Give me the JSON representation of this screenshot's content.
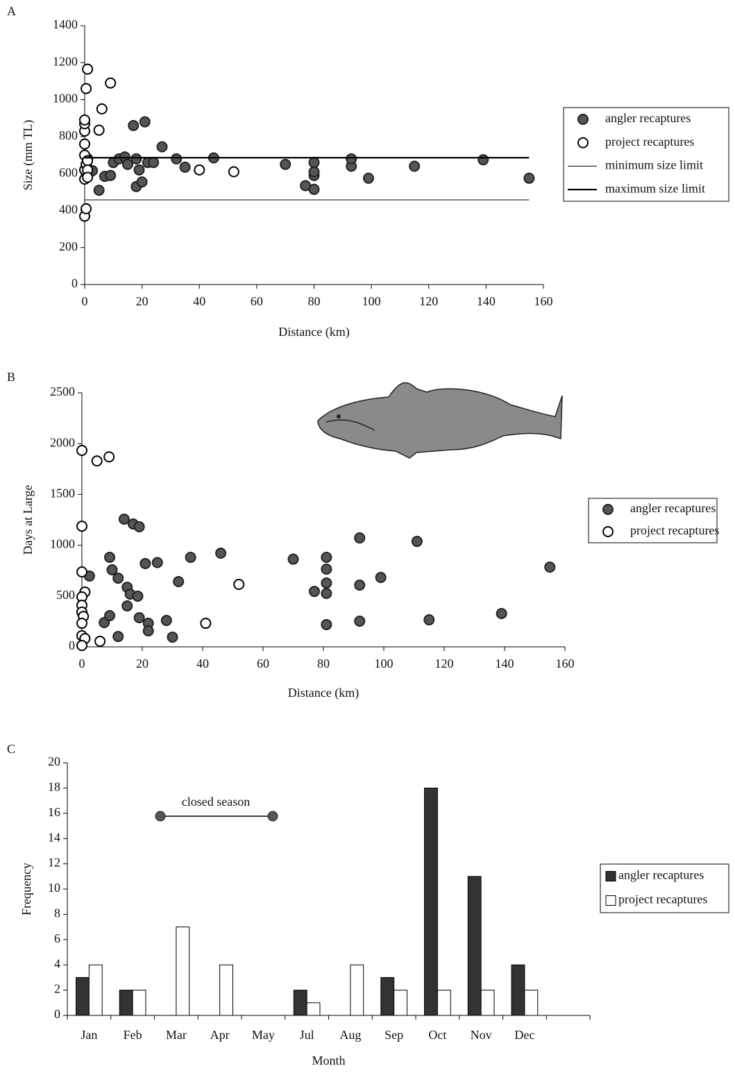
{
  "chart_data": [
    {
      "type": "scatter",
      "panel_label": "A",
      "x_label": "Distance (km)",
      "y_label": "Size (mm TL)",
      "xlim": [
        0,
        160
      ],
      "xticks": [
        0,
        20,
        40,
        60,
        80,
        100,
        120,
        140,
        160
      ],
      "ylim": [
        0,
        1400
      ],
      "yticks": [
        0,
        200,
        400,
        600,
        800,
        1000,
        1200,
        1400
      ],
      "series": [
        {
          "name": "angler recaptures",
          "marker": "filled",
          "color": "#555555",
          "x": [
            2,
            2.7,
            5,
            7,
            9,
            10,
            12,
            14,
            15,
            17,
            18,
            18,
            19,
            20,
            21,
            22,
            24,
            27,
            32,
            35,
            45,
            70,
            77,
            80,
            80,
            80,
            80,
            93,
            93,
            99,
            115,
            139,
            155
          ],
          "values": [
            610,
            616,
            510,
            585,
            590,
            660,
            680,
            690,
            650,
            860,
            680,
            530,
            620,
            555,
            880,
            660,
            660,
            745,
            680,
            635,
            685,
            650,
            535,
            515,
            590,
            610,
            660,
            640,
            680,
            575,
            640,
            675,
            575
          ]
        },
        {
          "name": "project recaptures",
          "marker": "open",
          "color": "#000000",
          "x": [
            0,
            0.5,
            0,
            0,
            0.5,
            1,
            0,
            0,
            0,
            0,
            0,
            1,
            1,
            0.5,
            1,
            9,
            6,
            5,
            40,
            52,
            1
          ],
          "values": [
            370,
            410,
            570,
            620,
            650,
            680,
            700,
            760,
            830,
            870,
            890,
            670,
            620,
            1060,
            1165,
            1090,
            950,
            835,
            620,
            610,
            580
          ]
        },
        {
          "name": "minimum size limit",
          "marker": "line",
          "width": 1,
          "color": "#000000",
          "x": [
            0,
            155
          ],
          "values": [
            458,
            458
          ]
        },
        {
          "name": "maximum size limit",
          "marker": "line",
          "width": 2.2,
          "color": "#000000",
          "x": [
            0,
            155
          ],
          "values": [
            686,
            686
          ]
        }
      ]
    },
    {
      "type": "scatter",
      "panel_label": "B",
      "x_label": "Distance (km)",
      "y_label": "Days at Large",
      "xlim": [
        0,
        160
      ],
      "xticks": [
        0,
        20,
        40,
        60,
        80,
        100,
        120,
        140,
        160
      ],
      "ylim": [
        0,
        2500
      ],
      "yticks": [
        0,
        500,
        1000,
        1500,
        2000,
        2500
      ],
      "series": [
        {
          "name": "angler recaptures",
          "marker": "filled",
          "color": "#555555",
          "x": [
            2.5,
            7.4,
            9.2,
            9.2,
            10,
            12,
            12,
            14,
            15,
            16,
            15,
            17,
            19,
            18.5,
            19,
            21,
            22,
            22,
            25,
            28,
            30,
            32,
            36,
            46,
            70,
            77,
            81,
            81,
            81,
            81,
            81,
            92,
            92,
            92,
            99,
            111,
            115,
            139,
            155
          ],
          "values": [
            697,
            239,
            307,
            881,
            758,
            676,
            102,
            1257,
            587,
            519,
            403,
            1209,
            1182,
            499,
            287,
            820,
            232,
            157,
            830,
            260,
            96,
            642,
            881,
            922,
            863,
            546,
            881,
            765,
            628,
            526,
            219,
            1072,
            608,
            253,
            683,
            1038,
            266,
            328,
            785
          ]
        },
        {
          "name": "project recaptures",
          "marker": "open",
          "color": "#000000",
          "x": [
            0,
            5,
            9,
            0,
            0,
            1,
            0,
            0,
            0,
            0.5,
            0,
            0,
            1,
            0,
            6,
            41,
            52
          ],
          "values": [
            1933,
            1830,
            1870,
            1188,
            738,
            540,
            492,
            410,
            342,
            300,
            232,
            110,
            82,
            14,
            55,
            232,
            615
          ]
        }
      ]
    },
    {
      "type": "bar",
      "panel_label": "C",
      "x_label": "Month",
      "y_label": "Frequency",
      "annotation": "closed season",
      "categories": [
        "Jan",
        "Feb",
        "Mar",
        "Apr",
        "May",
        "Jul",
        "Aug",
        "Sep",
        "Oct",
        "Nov",
        "Dec",
        null
      ],
      "ylim": [
        0,
        20
      ],
      "yticks": [
        0,
        2,
        4,
        6,
        8,
        10,
        12,
        14,
        16,
        18,
        20
      ],
      "series": [
        {
          "name": "angler recaptures",
          "color": "#333333",
          "values": [
            3,
            2,
            0,
            0,
            0,
            2,
            0,
            3,
            18,
            11,
            4,
            null
          ]
        },
        {
          "name": "project recaptures",
          "color": "#ffffff",
          "values": [
            4,
            2,
            7,
            4,
            0,
            1,
            4,
            2,
            2,
            2,
            2,
            null
          ]
        }
      ]
    }
  ]
}
